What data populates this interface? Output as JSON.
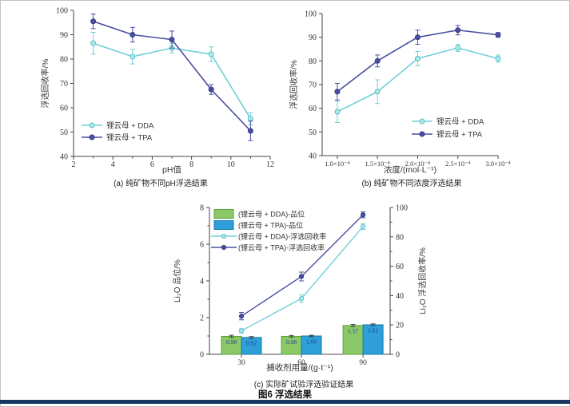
{
  "figure": {
    "caption": "图6  浮选结果"
  },
  "colors": {
    "dda_line": "#6fd0d6",
    "tpa_line": "#4a50a2",
    "dda_grade_bar": "#8cc868",
    "tpa_grade_bar": "#2e9fd8",
    "bottom_rule": "#17365d"
  },
  "chart_data": [
    {
      "id": "a",
      "type": "line",
      "caption": "(a) 纯矿物不同pH浮选结果",
      "xlabel": "pH值",
      "ylabel": "浮选回收率/%",
      "xlim": [
        2,
        12
      ],
      "ylim": [
        40,
        100
      ],
      "xticks": [
        2,
        4,
        6,
        8,
        10,
        12
      ],
      "xminor": [
        3,
        5,
        7,
        9,
        11
      ],
      "yticks": [
        40,
        50,
        60,
        70,
        80,
        90,
        100
      ],
      "x": [
        3,
        5,
        7,
        9,
        11
      ],
      "legend_position": "bottom-left",
      "series": [
        {
          "name": "锂云母 + DDA",
          "color": "#6fd0d6",
          "marker_fill": "#aee8e9",
          "marker_edge": "#55c3ca",
          "values": [
            86.5,
            81,
            84.5,
            82,
            55.5
          ],
          "errors": [
            4.5,
            3,
            2,
            3,
            2.5
          ]
        },
        {
          "name": "锂云母 + TPA",
          "color": "#4a50a2",
          "marker_fill": "#4a50a2",
          "marker_edge": "#333a80",
          "values": [
            95.5,
            90,
            88,
            67.5,
            50.5
          ],
          "errors": [
            3,
            3,
            3.5,
            2,
            4
          ]
        }
      ]
    },
    {
      "id": "b",
      "type": "line",
      "caption": "(b) 纯矿物不同浓度浮选结果",
      "xlabel": "浓度/(mol·L⁻¹)",
      "ylabel": "浮选回收率/%",
      "ylim": [
        40,
        100
      ],
      "categories": [
        "1.0×10⁻⁴",
        "1.5×10⁻⁴",
        "2.0×10⁻⁴",
        "2.5×10⁻⁴",
        "3.0×10⁻⁴"
      ],
      "yticks": [
        40,
        50,
        60,
        70,
        80,
        90,
        100
      ],
      "legend_position": "bottom-right",
      "series": [
        {
          "name": "锂云母 + DDA",
          "color": "#6fd0d6",
          "marker_fill": "#aee8e9",
          "marker_edge": "#55c3ca",
          "values": [
            58.5,
            67,
            81,
            85.5,
            81
          ],
          "errors": [
            4.5,
            5,
            3,
            1.5,
            1.5
          ]
        },
        {
          "name": "锂云母 + TPA",
          "color": "#4a50a2",
          "marker_fill": "#4a50a2",
          "marker_edge": "#333a80",
          "values": [
            67,
            80,
            90,
            93,
            91
          ],
          "errors": [
            3.5,
            2.5,
            3,
            2,
            1
          ]
        }
      ]
    },
    {
      "id": "c",
      "type": "bar+line",
      "caption": "(c) 实际矿试验浮选验证结果",
      "xlabel": "捕收剂用量/(g·t⁻¹)",
      "ylabel_left": "Li₂O 品位/%",
      "ylabel_right": "Li₂O 浮选回收率/%",
      "ylim_left": [
        0,
        8
      ],
      "ylim_right": [
        0,
        100
      ],
      "yticks_left": [
        0,
        2,
        4,
        6,
        8
      ],
      "yminor_left": [
        1,
        3,
        5,
        7
      ],
      "yticks_right": [
        0,
        20,
        40,
        60,
        80,
        100
      ],
      "yminor_right": [
        10,
        30,
        50,
        70,
        90
      ],
      "categories": [
        "30",
        "60",
        "90"
      ],
      "bar_label_color": "#1e3a8c",
      "bars": [
        {
          "name": "(锂云母 + DDA)-品位",
          "color": "#8cc868",
          "edge": "#55a23e",
          "values": [
            0.98,
            0.98,
            1.57
          ],
          "labels": [
            "0.98",
            "0.98",
            "1.57"
          ],
          "errors": [
            0.06,
            0.05,
            0.06
          ]
        },
        {
          "name": "(锂云母 + TPA)-品位",
          "color": "#2e9fd8",
          "edge": "#1879ad",
          "values": [
            0.92,
            1.0,
            1.61
          ],
          "labels": [
            "0.92",
            "1.00",
            "1.61"
          ],
          "errors": [
            0.05,
            0.04,
            0.05
          ]
        }
      ],
      "lines": [
        {
          "name": "(锂云母 + DDA)-浮选回收率",
          "color": "#6fd0d6",
          "marker_fill": "#aee8e9",
          "marker_edge": "#55c3ca",
          "values": [
            16,
            38,
            87
          ],
          "errors": [
            1.5,
            2.5,
            2
          ]
        },
        {
          "name": "(锂云母 + TPA)-浮选回收率",
          "color": "#4a50a2",
          "marker_fill": "#4a50a2",
          "marker_edge": "#333a80",
          "values": [
            26,
            53,
            95
          ],
          "errors": [
            2.5,
            3,
            2
          ]
        }
      ]
    }
  ]
}
